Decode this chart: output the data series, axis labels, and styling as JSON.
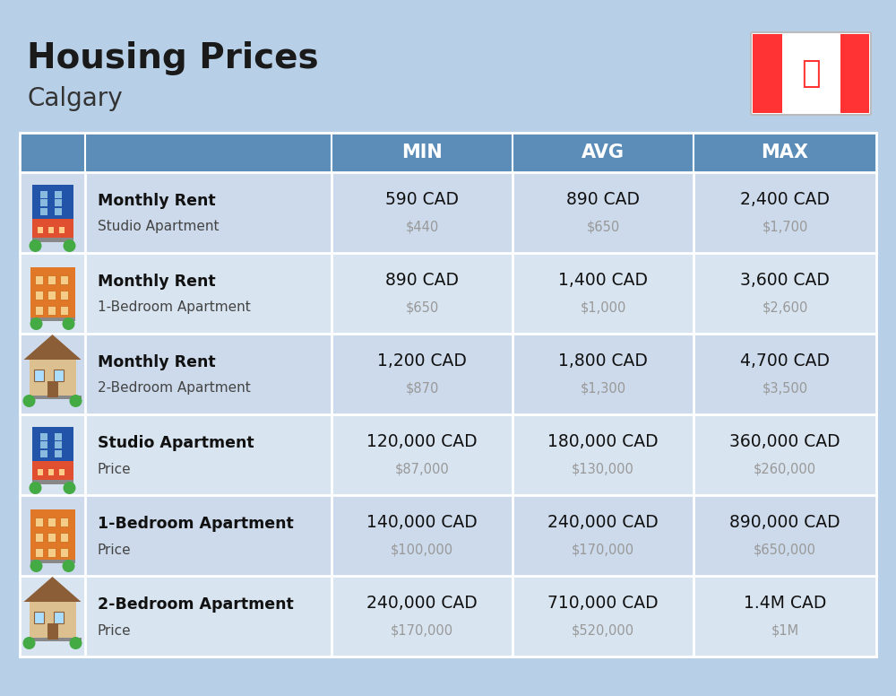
{
  "title": "Housing Prices",
  "subtitle": "Calgary",
  "background_color": "#b8cfe8",
  "header_bg_color": "#5b8db8",
  "header_text_color": "#ffffff",
  "row_colors": [
    "#ccdaeb",
    "#d8e4f0"
  ],
  "col_header": [
    "MIN",
    "AVG",
    "MAX"
  ],
  "rows": [
    {
      "label_bold": "Monthly Rent",
      "label_sub": "Studio Apartment",
      "min_cad": "590 CAD",
      "min_usd": "$440",
      "avg_cad": "890 CAD",
      "avg_usd": "$650",
      "max_cad": "2,400 CAD",
      "max_usd": "$1,700",
      "icon_type": "studio_blue"
    },
    {
      "label_bold": "Monthly Rent",
      "label_sub": "1-Bedroom Apartment",
      "min_cad": "890 CAD",
      "min_usd": "$650",
      "avg_cad": "1,400 CAD",
      "avg_usd": "$1,000",
      "max_cad": "3,600 CAD",
      "max_usd": "$2,600",
      "icon_type": "one_bed_orange"
    },
    {
      "label_bold": "Monthly Rent",
      "label_sub": "2-Bedroom Apartment",
      "min_cad": "1,200 CAD",
      "min_usd": "$870",
      "avg_cad": "1,800 CAD",
      "avg_usd": "$1,300",
      "max_cad": "4,700 CAD",
      "max_usd": "$3,500",
      "icon_type": "two_bed_beige"
    },
    {
      "label_bold": "Studio Apartment",
      "label_sub": "Price",
      "min_cad": "120,000 CAD",
      "min_usd": "$87,000",
      "avg_cad": "180,000 CAD",
      "avg_usd": "$130,000",
      "max_cad": "360,000 CAD",
      "max_usd": "$260,000",
      "icon_type": "studio_blue"
    },
    {
      "label_bold": "1-Bedroom Apartment",
      "label_sub": "Price",
      "min_cad": "140,000 CAD",
      "min_usd": "$100,000",
      "avg_cad": "240,000 CAD",
      "avg_usd": "$170,000",
      "max_cad": "890,000 CAD",
      "max_usd": "$650,000",
      "icon_type": "one_bed_orange"
    },
    {
      "label_bold": "2-Bedroom Apartment",
      "label_sub": "Price",
      "min_cad": "240,000 CAD",
      "min_usd": "$170,000",
      "avg_cad": "710,000 CAD",
      "avg_usd": "$520,000",
      "max_cad": "1.4M CAD",
      "max_usd": "$1M",
      "icon_type": "two_bed_beige"
    }
  ]
}
